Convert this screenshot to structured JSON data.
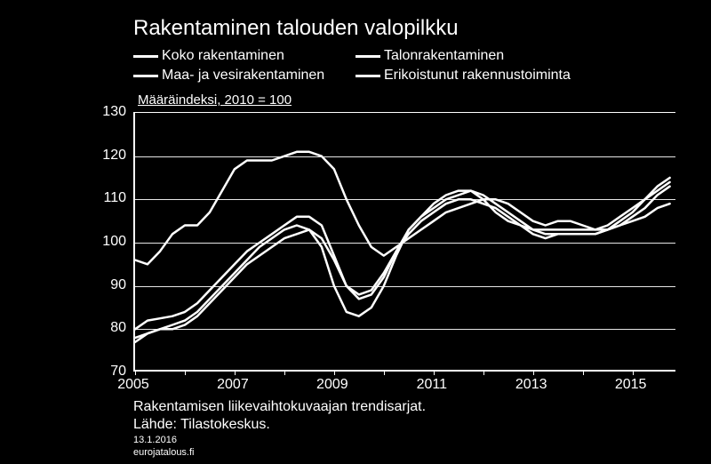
{
  "title": "Rakentaminen talouden valopilkku",
  "subtitle": "Määräindeksi, 2010 = 100",
  "legend": [
    "Koko rakentaminen",
    "Talonrakentaminen",
    "Maa- ja vesirakentaminen",
    "Erikoistunut rakennustoiminta"
  ],
  "footer": {
    "line1": "Rakentamisen liikevaihtokuvaajan trendisarjat.",
    "line2": "Lähde: Tilastokeskus.",
    "date": "13.1.2016",
    "site": "eurojatalous.fi"
  },
  "chart": {
    "type": "line",
    "background_color": "#000000",
    "line_color": "#ffffff",
    "grid_color": "#ffffff",
    "text_color": "#ffffff",
    "line_width": 2.5,
    "title_fontsize": 24,
    "axis_fontsize": 16,
    "x_start": 2005,
    "x_end": 2015.9,
    "x_ticks": [
      2005,
      2007,
      2009,
      2011,
      2013,
      2015
    ],
    "ylim": [
      70,
      130
    ],
    "y_ticks": [
      70,
      80,
      90,
      100,
      110,
      120,
      130
    ],
    "series": {
      "koko": [
        [
          2005.0,
          80
        ],
        [
          2005.25,
          82
        ],
        [
          2005.5,
          82.5
        ],
        [
          2005.75,
          83
        ],
        [
          2006.0,
          84
        ],
        [
          2006.25,
          86
        ],
        [
          2006.5,
          89
        ],
        [
          2006.75,
          92
        ],
        [
          2007.0,
          95
        ],
        [
          2007.25,
          98
        ],
        [
          2007.5,
          100
        ],
        [
          2007.75,
          102
        ],
        [
          2008.0,
          104
        ],
        [
          2008.25,
          106
        ],
        [
          2008.5,
          106
        ],
        [
          2008.75,
          104
        ],
        [
          2009.0,
          97
        ],
        [
          2009.25,
          90
        ],
        [
          2009.5,
          87
        ],
        [
          2009.75,
          88
        ],
        [
          2010.0,
          92
        ],
        [
          2010.25,
          98
        ],
        [
          2010.5,
          103
        ],
        [
          2010.75,
          106
        ],
        [
          2011.0,
          108
        ],
        [
          2011.25,
          110
        ],
        [
          2011.5,
          111
        ],
        [
          2011.75,
          112
        ],
        [
          2012.0,
          111
        ],
        [
          2012.25,
          109
        ],
        [
          2012.5,
          107
        ],
        [
          2012.75,
          105
        ],
        [
          2013.0,
          103
        ],
        [
          2013.25,
          103
        ],
        [
          2013.5,
          103
        ],
        [
          2013.75,
          103
        ],
        [
          2014.0,
          103
        ],
        [
          2014.25,
          103
        ],
        [
          2014.5,
          104
        ],
        [
          2014.75,
          106
        ],
        [
          2015.0,
          108
        ],
        [
          2015.25,
          110
        ],
        [
          2015.5,
          112
        ],
        [
          2015.75,
          114
        ]
      ],
      "talon": [
        [
          2005.0,
          78
        ],
        [
          2005.25,
          79
        ],
        [
          2005.5,
          80
        ],
        [
          2005.75,
          81
        ],
        [
          2006.0,
          82
        ],
        [
          2006.25,
          84
        ],
        [
          2006.5,
          87
        ],
        [
          2006.75,
          90
        ],
        [
          2007.0,
          93
        ],
        [
          2007.25,
          96
        ],
        [
          2007.5,
          99
        ],
        [
          2007.75,
          101
        ],
        [
          2008.0,
          103
        ],
        [
          2008.25,
          104
        ],
        [
          2008.5,
          103
        ],
        [
          2008.75,
          99
        ],
        [
          2009.0,
          90
        ],
        [
          2009.25,
          84
        ],
        [
          2009.5,
          83
        ],
        [
          2009.75,
          85
        ],
        [
          2010.0,
          90
        ],
        [
          2010.25,
          97
        ],
        [
          2010.5,
          103
        ],
        [
          2010.75,
          106
        ],
        [
          2011.0,
          109
        ],
        [
          2011.25,
          111
        ],
        [
          2011.5,
          112
        ],
        [
          2011.75,
          112
        ],
        [
          2012.0,
          110
        ],
        [
          2012.25,
          107
        ],
        [
          2012.5,
          105
        ],
        [
          2012.75,
          104
        ],
        [
          2013.0,
          103
        ],
        [
          2013.25,
          102
        ],
        [
          2013.5,
          102
        ],
        [
          2013.75,
          102
        ],
        [
          2014.0,
          102
        ],
        [
          2014.25,
          102
        ],
        [
          2014.5,
          103
        ],
        [
          2014.75,
          105
        ],
        [
          2015.0,
          107
        ],
        [
          2015.25,
          110
        ],
        [
          2015.5,
          113
        ],
        [
          2015.75,
          115
        ]
      ],
      "maa": [
        [
          2005.0,
          96
        ],
        [
          2005.25,
          95
        ],
        [
          2005.5,
          98
        ],
        [
          2005.75,
          102
        ],
        [
          2006.0,
          104
        ],
        [
          2006.25,
          104
        ],
        [
          2006.5,
          107
        ],
        [
          2006.75,
          112
        ],
        [
          2007.0,
          117
        ],
        [
          2007.25,
          119
        ],
        [
          2007.5,
          119
        ],
        [
          2007.75,
          119
        ],
        [
          2008.0,
          120
        ],
        [
          2008.25,
          121
        ],
        [
          2008.5,
          121
        ],
        [
          2008.75,
          120
        ],
        [
          2009.0,
          117
        ],
        [
          2009.25,
          110
        ],
        [
          2009.5,
          104
        ],
        [
          2009.75,
          99
        ],
        [
          2010.0,
          97
        ],
        [
          2010.25,
          99
        ],
        [
          2010.5,
          101
        ],
        [
          2010.75,
          103
        ],
        [
          2011.0,
          105
        ],
        [
          2011.25,
          107
        ],
        [
          2011.5,
          108
        ],
        [
          2011.75,
          109
        ],
        [
          2012.0,
          110
        ],
        [
          2012.25,
          110
        ],
        [
          2012.5,
          109
        ],
        [
          2012.75,
          107
        ],
        [
          2013.0,
          105
        ],
        [
          2013.25,
          104
        ],
        [
          2013.5,
          105
        ],
        [
          2013.75,
          105
        ],
        [
          2014.0,
          104
        ],
        [
          2014.25,
          103
        ],
        [
          2014.5,
          103
        ],
        [
          2014.75,
          104
        ],
        [
          2015.0,
          105
        ],
        [
          2015.25,
          106
        ],
        [
          2015.5,
          108
        ],
        [
          2015.75,
          109
        ]
      ],
      "erikois": [
        [
          2005.0,
          77
        ],
        [
          2005.25,
          79
        ],
        [
          2005.5,
          80
        ],
        [
          2005.75,
          80
        ],
        [
          2006.0,
          81
        ],
        [
          2006.25,
          83
        ],
        [
          2006.5,
          86
        ],
        [
          2006.75,
          89
        ],
        [
          2007.0,
          92
        ],
        [
          2007.25,
          95
        ],
        [
          2007.5,
          97
        ],
        [
          2007.75,
          99
        ],
        [
          2008.0,
          101
        ],
        [
          2008.25,
          102
        ],
        [
          2008.5,
          103
        ],
        [
          2008.75,
          101
        ],
        [
          2009.0,
          96
        ],
        [
          2009.25,
          90
        ],
        [
          2009.5,
          88
        ],
        [
          2009.75,
          89
        ],
        [
          2010.0,
          93
        ],
        [
          2010.25,
          98
        ],
        [
          2010.5,
          102
        ],
        [
          2010.75,
          105
        ],
        [
          2011.0,
          107
        ],
        [
          2011.25,
          109
        ],
        [
          2011.5,
          110
        ],
        [
          2011.75,
          110
        ],
        [
          2012.0,
          109
        ],
        [
          2012.25,
          108
        ],
        [
          2012.5,
          106
        ],
        [
          2012.75,
          104
        ],
        [
          2013.0,
          102
        ],
        [
          2013.25,
          101
        ],
        [
          2013.5,
          102
        ],
        [
          2013.75,
          102
        ],
        [
          2014.0,
          102
        ],
        [
          2014.25,
          102
        ],
        [
          2014.5,
          103
        ],
        [
          2014.75,
          104
        ],
        [
          2015.0,
          106
        ],
        [
          2015.25,
          108
        ],
        [
          2015.5,
          111
        ],
        [
          2015.75,
          113
        ]
      ]
    }
  }
}
